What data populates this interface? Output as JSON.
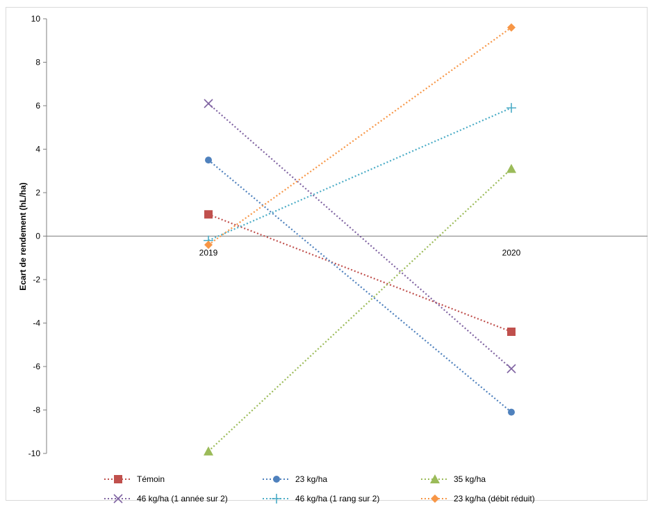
{
  "chart_data": {
    "type": "line",
    "title": "",
    "xlabel": "",
    "ylabel": "Ecart de rendement (hL/ha)",
    "ylim": [
      -10,
      10
    ],
    "yticks": [
      "10",
      "8",
      "6",
      "4",
      "2",
      "0",
      "-2",
      "-4",
      "-6",
      "-8",
      "-10"
    ],
    "categories": [
      "2019",
      "2020"
    ],
    "grid": false,
    "legend_position": "bottom",
    "series": [
      {
        "name": "Témoin",
        "values": [
          1.0,
          -4.4
        ],
        "color": "#c0504d",
        "marker": "square"
      },
      {
        "name": "23 kg/ha",
        "values": [
          3.5,
          -8.1
        ],
        "color": "#4f81bd",
        "marker": "circle"
      },
      {
        "name": "35 kg/ha",
        "values": [
          -9.9,
          3.1
        ],
        "color": "#9bbb59",
        "marker": "triangle"
      },
      {
        "name": "46 kg/ha (1 année sur 2)",
        "values": [
          6.1,
          -6.1
        ],
        "color": "#8064a2",
        "marker": "x"
      },
      {
        "name": "46 kg/ha (1 rang sur 2)",
        "values": [
          -0.2,
          5.9
        ],
        "color": "#4bacc6",
        "marker": "plus"
      },
      {
        "name": "23 kg/ha (débit réduit)",
        "values": [
          -0.4,
          9.6
        ],
        "color": "#f79646",
        "marker": "diamond"
      }
    ]
  }
}
